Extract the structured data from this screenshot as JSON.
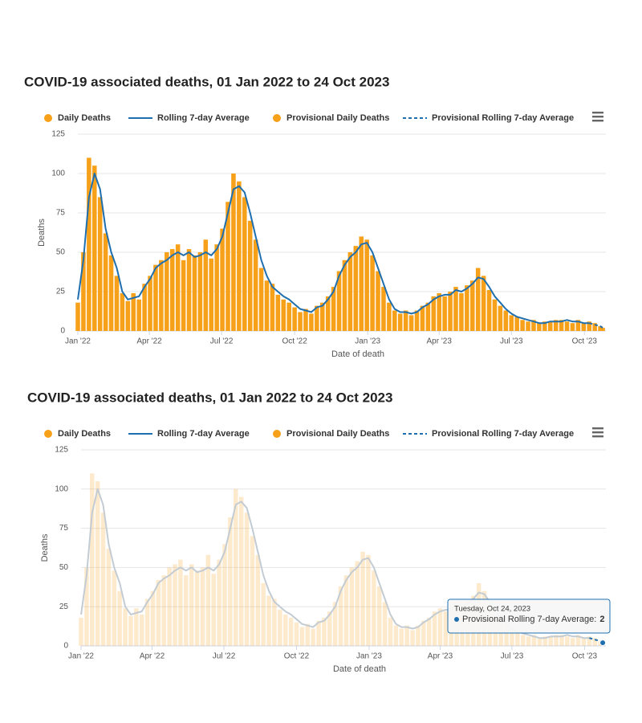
{
  "chart_data": [
    {
      "type": "bar",
      "title": "COVID-19 associated deaths, 01 Jan 2022 to 24 Oct 2023",
      "x_label": "Date of death",
      "y_label": "Deaths",
      "xlim": [
        "2022-01-01",
        "2023-10-28"
      ],
      "ylim": [
        0,
        125
      ],
      "yticks": [
        0,
        25,
        50,
        75,
        100,
        125
      ],
      "grid": true,
      "xticks": [
        {
          "value": "2022-01-01",
          "label": "Jan '22"
        },
        {
          "value": "2022-04-01",
          "label": "Apr '22"
        },
        {
          "value": "2022-07-01",
          "label": "Jul '22"
        },
        {
          "value": "2022-10-01",
          "label": "Oct '22"
        },
        {
          "value": "2023-01-01",
          "label": "Jan '23"
        },
        {
          "value": "2023-04-01",
          "label": "Apr '23"
        },
        {
          "value": "2023-07-01",
          "label": "Jul '23"
        },
        {
          "value": "2023-10-01",
          "label": "Oct '23"
        }
      ],
      "x": [
        "2022-01-01",
        "2022-01-08",
        "2022-01-15",
        "2022-01-22",
        "2022-01-29",
        "2022-02-05",
        "2022-02-12",
        "2022-02-19",
        "2022-02-26",
        "2022-03-05",
        "2022-03-12",
        "2022-03-19",
        "2022-03-26",
        "2022-04-02",
        "2022-04-09",
        "2022-04-16",
        "2022-04-23",
        "2022-04-30",
        "2022-05-07",
        "2022-05-14",
        "2022-05-21",
        "2022-05-28",
        "2022-06-04",
        "2022-06-11",
        "2022-06-18",
        "2022-06-25",
        "2022-07-02",
        "2022-07-09",
        "2022-07-16",
        "2022-07-23",
        "2022-07-30",
        "2022-08-06",
        "2022-08-13",
        "2022-08-20",
        "2022-08-27",
        "2022-09-03",
        "2022-09-10",
        "2022-09-17",
        "2022-09-24",
        "2022-10-01",
        "2022-10-08",
        "2022-10-15",
        "2022-10-22",
        "2022-10-29",
        "2022-11-05",
        "2022-11-12",
        "2022-11-19",
        "2022-11-26",
        "2022-12-03",
        "2022-12-10",
        "2022-12-17",
        "2022-12-24",
        "2022-12-31",
        "2023-01-07",
        "2023-01-14",
        "2023-01-21",
        "2023-01-28",
        "2023-02-04",
        "2023-02-11",
        "2023-02-18",
        "2023-02-25",
        "2023-03-04",
        "2023-03-11",
        "2023-03-18",
        "2023-03-25",
        "2023-04-01",
        "2023-04-08",
        "2023-04-15",
        "2023-04-22",
        "2023-04-29",
        "2023-05-06",
        "2023-05-13",
        "2023-05-20",
        "2023-05-27",
        "2023-06-03",
        "2023-06-10",
        "2023-06-17",
        "2023-06-24",
        "2023-07-01",
        "2023-07-08",
        "2023-07-15",
        "2023-07-22",
        "2023-07-29",
        "2023-08-05",
        "2023-08-12",
        "2023-08-19",
        "2023-08-26",
        "2023-09-02",
        "2023-09-09",
        "2023-09-16",
        "2023-09-23",
        "2023-09-30",
        "2023-10-07"
      ],
      "series": [
        {
          "name": "Daily Deaths",
          "type": "column",
          "color": "#f7a11a",
          "values": [
            18,
            50,
            110,
            105,
            85,
            62,
            48,
            35,
            24,
            19,
            24,
            20,
            30,
            35,
            42,
            45,
            50,
            52,
            55,
            45,
            52,
            48,
            50,
            58,
            46,
            55,
            65,
            82,
            100,
            95,
            85,
            70,
            58,
            40,
            32,
            30,
            23,
            20,
            18,
            15,
            12,
            14,
            11,
            16,
            18,
            22,
            28,
            38,
            45,
            50,
            54,
            60,
            58,
            48,
            38,
            28,
            18,
            13,
            11,
            13,
            10,
            13,
            16,
            18,
            22,
            24,
            22,
            25,
            28,
            24,
            29,
            32,
            40,
            35,
            26,
            20,
            16,
            13,
            10,
            9,
            7,
            6,
            7,
            5,
            6,
            6,
            7,
            7,
            6,
            5,
            7,
            5,
            6
          ]
        },
        {
          "name": "Rolling 7-day Average",
          "type": "line",
          "color": "#1f6faf",
          "values": [
            20,
            45,
            85,
            100,
            90,
            65,
            50,
            40,
            25,
            20,
            21,
            22,
            28,
            33,
            40,
            43,
            45,
            48,
            50,
            48,
            50,
            47,
            48,
            50,
            48,
            52,
            60,
            75,
            90,
            92,
            88,
            75,
            60,
            45,
            35,
            28,
            25,
            22,
            20,
            17,
            14,
            13,
            12,
            15,
            16,
            20,
            25,
            35,
            42,
            47,
            50,
            55,
            56,
            50,
            40,
            30,
            20,
            14,
            12,
            12,
            11,
            12,
            15,
            17,
            20,
            22,
            23,
            23,
            26,
            25,
            27,
            30,
            34,
            33,
            28,
            22,
            18,
            14,
            11,
            9,
            8,
            7,
            6,
            5,
            5,
            6,
            6,
            6,
            7,
            6,
            6,
            5,
            5
          ]
        },
        {
          "name": "Provisional Daily Deaths",
          "type": "column",
          "color": "#f7a11a",
          "x": [
            "2023-10-14",
            "2023-10-21",
            "2023-10-24"
          ],
          "values": [
            5,
            3,
            2
          ]
        },
        {
          "name": "Provisional Rolling 7-day Average",
          "type": "line",
          "dash": true,
          "color": "#1f6faf",
          "x": [
            "2023-10-07",
            "2023-10-14",
            "2023-10-21",
            "2023-10-24"
          ],
          "values": [
            5,
            4,
            3,
            2
          ]
        }
      ]
    },
    {
      "type": "bar",
      "title": "COVID-19 associated deaths, 01 Jan 2022 to 24 Oct 2023",
      "x_label": "Date of death",
      "y_label": "Deaths",
      "xlim": [
        "2022-01-01",
        "2023-10-28"
      ],
      "ylim": [
        0,
        125
      ],
      "yticks": [
        0,
        25,
        50,
        75,
        100,
        125
      ],
      "grid": true,
      "xticks": [
        {
          "value": "2022-01-01",
          "label": "Jan '22"
        },
        {
          "value": "2022-04-01",
          "label": "Apr '22"
        },
        {
          "value": "2022-07-01",
          "label": "Jul '22"
        },
        {
          "value": "2022-10-01",
          "label": "Oct '22"
        },
        {
          "value": "2023-01-01",
          "label": "Jan '23"
        },
        {
          "value": "2023-04-01",
          "label": "Apr '23"
        },
        {
          "value": "2023-07-01",
          "label": "Jul '23"
        },
        {
          "value": "2023-10-01",
          "label": "Oct '23"
        }
      ],
      "x": [
        "2022-01-01",
        "2022-01-08",
        "2022-01-15",
        "2022-01-22",
        "2022-01-29",
        "2022-02-05",
        "2022-02-12",
        "2022-02-19",
        "2022-02-26",
        "2022-03-05",
        "2022-03-12",
        "2022-03-19",
        "2022-03-26",
        "2022-04-02",
        "2022-04-09",
        "2022-04-16",
        "2022-04-23",
        "2022-04-30",
        "2022-05-07",
        "2022-05-14",
        "2022-05-21",
        "2022-05-28",
        "2022-06-04",
        "2022-06-11",
        "2022-06-18",
        "2022-06-25",
        "2022-07-02",
        "2022-07-09",
        "2022-07-16",
        "2022-07-23",
        "2022-07-30",
        "2022-08-06",
        "2022-08-13",
        "2022-08-20",
        "2022-08-27",
        "2022-09-03",
        "2022-09-10",
        "2022-09-17",
        "2022-09-24",
        "2022-10-01",
        "2022-10-08",
        "2022-10-15",
        "2022-10-22",
        "2022-10-29",
        "2022-11-05",
        "2022-11-12",
        "2022-11-19",
        "2022-11-26",
        "2022-12-03",
        "2022-12-10",
        "2022-12-17",
        "2022-12-24",
        "2022-12-31",
        "2023-01-07",
        "2023-01-14",
        "2023-01-21",
        "2023-01-28",
        "2023-02-04",
        "2023-02-11",
        "2023-02-18",
        "2023-02-25",
        "2023-03-04",
        "2023-03-11",
        "2023-03-18",
        "2023-03-25",
        "2023-04-01",
        "2023-04-08",
        "2023-04-15",
        "2023-04-22",
        "2023-04-29",
        "2023-05-06",
        "2023-05-13",
        "2023-05-20",
        "2023-05-27",
        "2023-06-03",
        "2023-06-10",
        "2023-06-17",
        "2023-06-24",
        "2023-07-01",
        "2023-07-08",
        "2023-07-15",
        "2023-07-22",
        "2023-07-29",
        "2023-08-05",
        "2023-08-12",
        "2023-08-19",
        "2023-08-26",
        "2023-09-02",
        "2023-09-09",
        "2023-09-16",
        "2023-09-23",
        "2023-09-30",
        "2023-10-07"
      ],
      "highlight": "Provisional Rolling 7-day Average",
      "tooltip": {
        "date": "Tuesday, Oct 24, 2023",
        "label": "Provisional Rolling 7-day Average:"
      },
      "series": [
        {
          "name": "Daily Deaths",
          "type": "column",
          "color": "#f7a11a",
          "values": [
            18,
            50,
            110,
            105,
            85,
            62,
            48,
            35,
            24,
            19,
            24,
            20,
            30,
            35,
            42,
            45,
            50,
            52,
            55,
            45,
            52,
            48,
            50,
            58,
            46,
            55,
            65,
            82,
            100,
            95,
            85,
            70,
            58,
            40,
            32,
            30,
            23,
            20,
            18,
            15,
            12,
            14,
            11,
            16,
            18,
            22,
            28,
            38,
            45,
            50,
            54,
            60,
            58,
            48,
            38,
            28,
            18,
            13,
            11,
            13,
            10,
            13,
            16,
            18,
            22,
            24,
            22,
            25,
            28,
            24,
            29,
            32,
            40,
            35,
            26,
            20,
            16,
            13,
            10,
            9,
            7,
            6,
            7,
            5,
            6,
            6,
            7,
            7,
            6,
            5,
            7,
            5,
            6
          ]
        },
        {
          "name": "Rolling 7-day Average",
          "type": "line",
          "color": "#1f6faf",
          "values": [
            20,
            45,
            85,
            100,
            90,
            65,
            50,
            40,
            25,
            20,
            21,
            22,
            28,
            33,
            40,
            43,
            45,
            48,
            50,
            48,
            50,
            47,
            48,
            50,
            48,
            52,
            60,
            75,
            90,
            92,
            88,
            75,
            60,
            45,
            35,
            28,
            25,
            22,
            20,
            17,
            14,
            13,
            12,
            15,
            16,
            20,
            25,
            35,
            42,
            47,
            50,
            55,
            56,
            50,
            40,
            30,
            20,
            14,
            12,
            12,
            11,
            12,
            15,
            17,
            20,
            22,
            23,
            23,
            26,
            25,
            27,
            30,
            34,
            33,
            28,
            22,
            18,
            14,
            11,
            9,
            8,
            7,
            6,
            5,
            5,
            6,
            6,
            6,
            7,
            6,
            6,
            5,
            5
          ]
        },
        {
          "name": "Provisional Daily Deaths",
          "type": "column",
          "color": "#f7a11a",
          "x": [
            "2023-10-14",
            "2023-10-21",
            "2023-10-24"
          ],
          "values": [
            5,
            3,
            2
          ]
        },
        {
          "name": "Provisional Rolling 7-day Average",
          "type": "line",
          "dash": true,
          "color": "#1f6faf",
          "x": [
            "2023-10-07",
            "2023-10-14",
            "2023-10-21",
            "2023-10-24"
          ],
          "values": [
            5,
            4,
            3,
            2
          ]
        }
      ]
    }
  ]
}
